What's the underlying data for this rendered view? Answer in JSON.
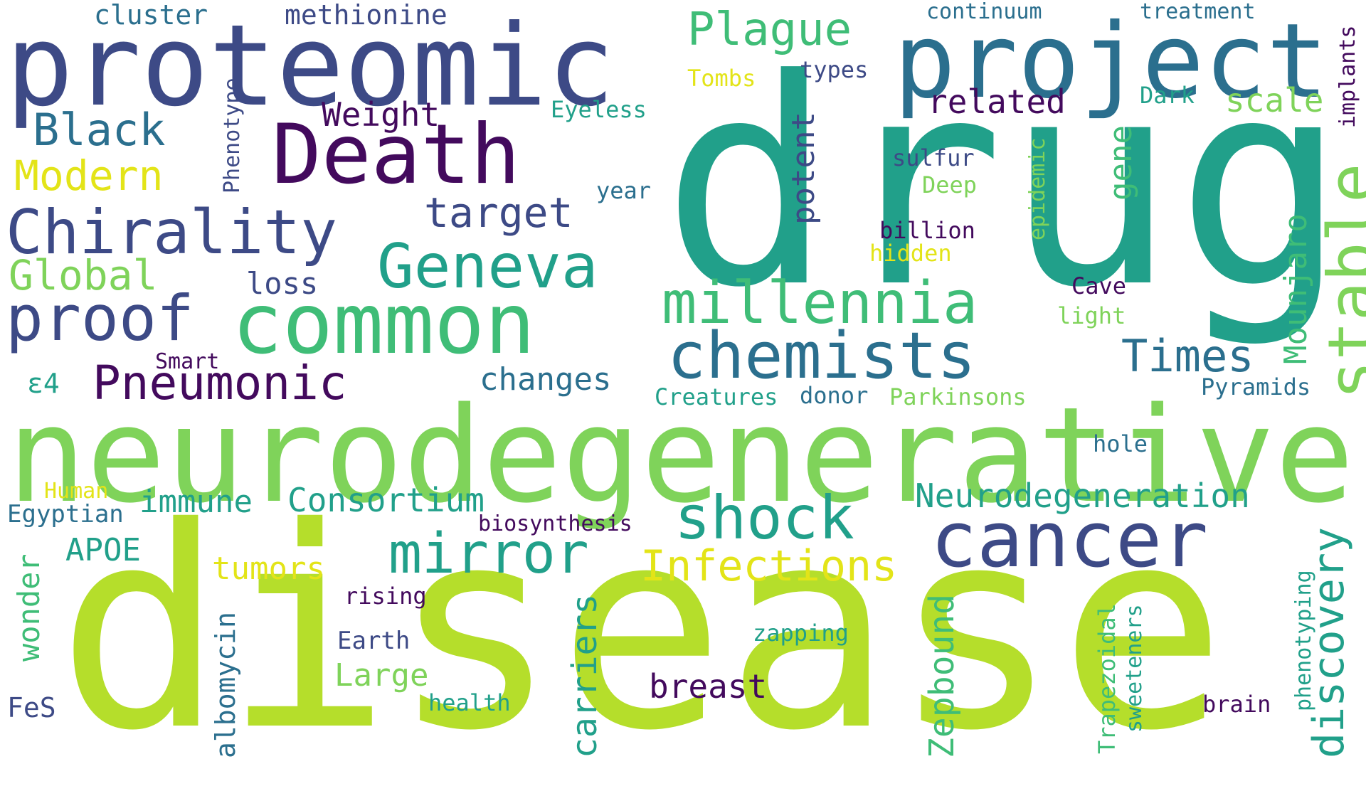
{
  "palette": {
    "navy": "#3d4a86",
    "darkpurple": "#430a5d",
    "blue": "#2b6f8e",
    "teal": "#21a08a",
    "green": "#3fbd77",
    "lightgreen": "#7fd35a",
    "lime": "#b5de2b",
    "yellow": "#e3e418"
  },
  "words": {
    "drug": "drug",
    "disease": "disease",
    "neurodegenerative": "neurodegenerative",
    "proteomic": "proteomic",
    "project": "project",
    "death": "Death",
    "common": "common",
    "cancer": "cancer",
    "chirality": "Chirality",
    "geneva": "Geneva",
    "chemists": "chemists",
    "millennia": "millennia",
    "proof": "proof",
    "mirror": "mirror",
    "shock": "shock",
    "stable": "stable",
    "discovery": "discovery",
    "pneumonic": "Pneumonic",
    "infections": "Infections",
    "plague": "Plague",
    "target": "target",
    "black": "Black",
    "times": "Times",
    "modern": "Modern",
    "global": "Global",
    "neurodegeneration": "Neurodegeneration",
    "consortium": "Consortium",
    "weight": "Weight",
    "related": "related",
    "changes": "changes",
    "mounjaro": "Mounjaro",
    "zepbound": "Zepbound",
    "carriers": "carriers",
    "potent": "potent",
    "scale": "scale",
    "immune": "immune",
    "breast": "breast",
    "tumors": "tumors",
    "apoe": "APOE",
    "large": "Large",
    "loss": "loss",
    "cluster": "cluster",
    "methionine": "methionine",
    "continuum": "continuum",
    "treatment": "treatment",
    "implants": "implants",
    "gene": "gene",
    "albomycin": "albomycin",
    "wonder": "wonder",
    "e4": "ε4",
    "egyptian": "Egyptian",
    "fes": "FeS",
    "human": "Human",
    "smart": "Smart",
    "phenotype": "Phenotype",
    "tombs": "Tombs",
    "types": "types",
    "eyeless": "Eyeless",
    "dark": "Dark",
    "year": "year",
    "sulfur": "sulfur",
    "deep": "Deep",
    "epidemic": "epidemic",
    "billion": "billion",
    "hidden": "hidden",
    "cave": "Cave",
    "light": "light",
    "pyramids": "Pyramids",
    "creatures": "Creatures",
    "donor": "donor",
    "parkinsons": "Parkinsons",
    "hole": "hole",
    "biosynthesis": "biosynthesis",
    "rising": "rising",
    "earth": "Earth",
    "zapping": "zapping",
    "health": "health",
    "brain": "brain",
    "trapezoidal": "Trapezoidal",
    "sweeteners": "sweeteners",
    "phenotyping": "phenotyping"
  }
}
